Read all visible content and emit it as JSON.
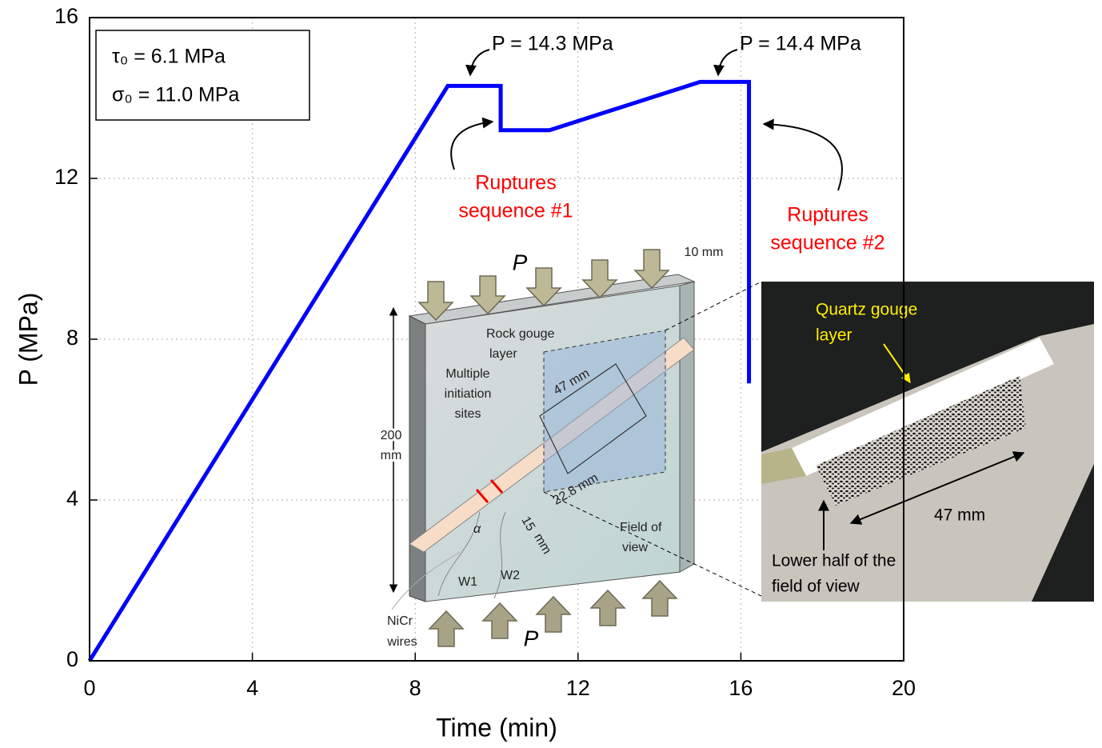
{
  "chart_data": {
    "type": "line",
    "xlabel": "Time (min)",
    "ylabel": "P (MPa)",
    "x": [
      0,
      8.8,
      10.1,
      10.1,
      11.3,
      15.0,
      16.2,
      16.2
    ],
    "values": [
      0,
      14.3,
      14.3,
      13.2,
      13.2,
      14.4,
      14.4,
      6.9
    ],
    "color": "#0000ff",
    "xlim": [
      0,
      20
    ],
    "ylim": [
      0,
      16
    ],
    "xticks": [
      0,
      4,
      8,
      12,
      16,
      20
    ],
    "yticks": [
      0,
      4,
      8,
      12,
      16
    ],
    "grid": true,
    "annotations": {
      "params": [
        "τ₀ = 6.1 MPa",
        "σ₀ = 11.0 MPa"
      ],
      "peak1": "P = 14.3 MPa",
      "peak2": "P = 14.4 MPa",
      "rupture1": [
        "Ruptures",
        "sequence #1"
      ],
      "rupture2": [
        "Ruptures",
        "sequence #2"
      ]
    },
    "inset_diagram": {
      "load_top": "P",
      "thickness": "10 mm",
      "gouge": [
        "Rock gouge",
        "layer"
      ],
      "gouge_length": "47 mm",
      "initiation": [
        "Multiple",
        "initiation",
        "sites"
      ],
      "height": [
        "200",
        "mm"
      ],
      "offset": "22.8 mm",
      "spacing": [
        "15",
        "mm"
      ],
      "angle": "α",
      "field": [
        "Field of",
        "view"
      ],
      "w1": "W1",
      "w2": "W2",
      "wires": [
        "NiCr",
        "wires"
      ],
      "load_bottom": "P"
    },
    "inset_photo": {
      "gouge": [
        "Quartz gouge",
        "layer"
      ],
      "length": "47 mm",
      "lower": [
        "Lower half of the",
        "field of view"
      ]
    }
  }
}
